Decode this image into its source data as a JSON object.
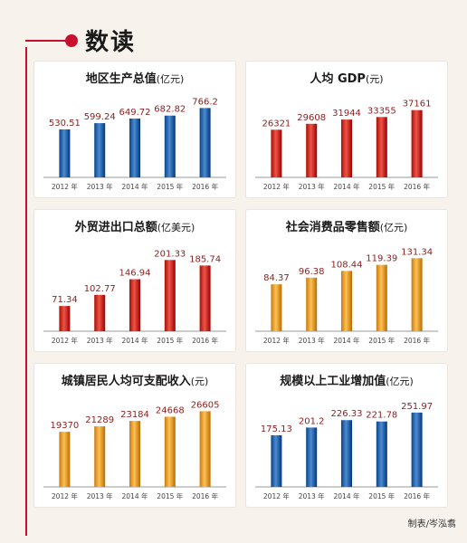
{
  "header": {
    "title": "数读"
  },
  "credit": "制表/岑泓翥",
  "colors": {
    "blue": "#2f6db3",
    "red": "#d1362b",
    "orange": "#f0a336",
    "value_text": "#8b1e1e"
  },
  "chart_data": [
    {
      "type": "bar",
      "title": "地区生产总值",
      "unit": "(亿元)",
      "categories": [
        "2012 年",
        "2013 年",
        "2014 年",
        "2015 年",
        "2016 年"
      ],
      "values": [
        530.51,
        599.24,
        649.72,
        682.82,
        766.2
      ],
      "labels": [
        "530.51",
        "599.24",
        "649.72",
        "682.82",
        "766.2"
      ],
      "color": "blue",
      "ylim": [
        0,
        800
      ]
    },
    {
      "type": "bar",
      "title": "人均 GDP",
      "unit": "(元)",
      "categories": [
        "2012 年",
        "2013 年",
        "2014 年",
        "2015 年",
        "2016 年"
      ],
      "values": [
        26321,
        29608,
        31944,
        33355,
        37161
      ],
      "labels": [
        "26321",
        "29608",
        "31944",
        "33355",
        "37161"
      ],
      "color": "red",
      "ylim": [
        0,
        40000
      ]
    },
    {
      "type": "bar",
      "title": "外贸进出口总额",
      "unit": "(亿美元)",
      "categories": [
        "2012 年",
        "2013 年",
        "2014 年",
        "2015 年",
        "2016 年"
      ],
      "values": [
        71.34,
        102.77,
        146.94,
        201.33,
        185.74
      ],
      "labels": [
        "71.34",
        "102.77",
        "146.94",
        "201.33",
        "185.74"
      ],
      "color": "red",
      "ylim": [
        0,
        220
      ]
    },
    {
      "type": "bar",
      "title": "社会消费品零售额",
      "unit": "(亿元)",
      "categories": [
        "2012 年",
        "2013 年",
        "2014 年",
        "2015 年",
        "2016 年"
      ],
      "values": [
        84.37,
        96.38,
        108.44,
        119.39,
        131.34
      ],
      "labels": [
        "84.37",
        "96.38",
        "108.44",
        "119.39",
        "131.34"
      ],
      "color": "orange",
      "ylim": [
        0,
        140
      ]
    },
    {
      "type": "bar",
      "title": "城镇居民人均可支配收入",
      "unit": "(元)",
      "categories": [
        "2012 年",
        "2013 年",
        "2014 年",
        "2015 年",
        "2016 年"
      ],
      "values": [
        19370,
        21289,
        23184,
        24668,
        26605
      ],
      "labels": [
        "19370",
        "21289",
        "23184",
        "24668",
        "26605"
      ],
      "color": "orange",
      "ylim": [
        0,
        28000
      ]
    },
    {
      "type": "bar",
      "title": "规模以上工业增加值",
      "unit": "(亿元)",
      "categories": [
        "2012 年",
        "2013 年",
        "2014 年",
        "2015 年",
        "2016 年"
      ],
      "values": [
        175.13,
        201.2,
        226.33,
        221.78,
        251.97
      ],
      "labels": [
        "175.13",
        "201.2",
        "226.33",
        "221.78",
        "251.97"
      ],
      "color": "blue",
      "ylim": [
        0,
        270
      ]
    }
  ]
}
